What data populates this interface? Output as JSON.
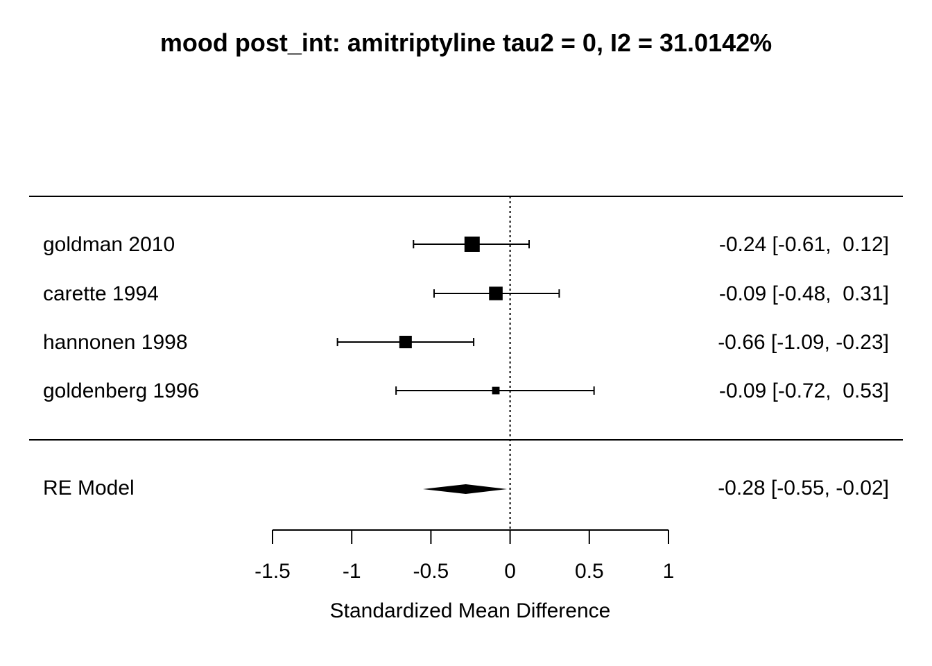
{
  "chart_data": {
    "type": "forest",
    "title": "mood post_int: amitriptyline tau2 = 0, I2 = 31.0142%",
    "xlabel": "Standardized Mean Difference",
    "x_ticks": [
      -1.5,
      -1,
      -0.5,
      0,
      0.5,
      1
    ],
    "x_tick_labels": [
      "-1.5",
      "-1",
      "-0.5",
      "0",
      "0.5",
      "1"
    ],
    "xlim": [
      -1.5,
      1
    ],
    "reference_line": 0,
    "studies": [
      {
        "label": "goldman 2010",
        "estimate": -0.24,
        "ci_low": -0.61,
        "ci_high": 0.12,
        "weight": 1.0,
        "ci_text": "-0.24 [-0.61,  0.12]"
      },
      {
        "label": "carette 1994",
        "estimate": -0.09,
        "ci_low": -0.48,
        "ci_high": 0.31,
        "weight": 0.85,
        "ci_text": "-0.09 [-0.48,  0.31]"
      },
      {
        "label": "hannonen 1998",
        "estimate": -0.66,
        "ci_low": -1.09,
        "ci_high": -0.23,
        "weight": 0.75,
        "ci_text": "-0.66 [-1.09, -0.23]"
      },
      {
        "label": "goldenberg 1996",
        "estimate": -0.09,
        "ci_low": -0.72,
        "ci_high": 0.53,
        "weight": 0.3,
        "ci_text": "-0.09 [-0.72,  0.53]"
      }
    ],
    "summary": {
      "label": "RE Model",
      "estimate": -0.28,
      "ci_low": -0.55,
      "ci_high": -0.02,
      "ci_text": "-0.28 [-0.55, -0.02]"
    }
  }
}
